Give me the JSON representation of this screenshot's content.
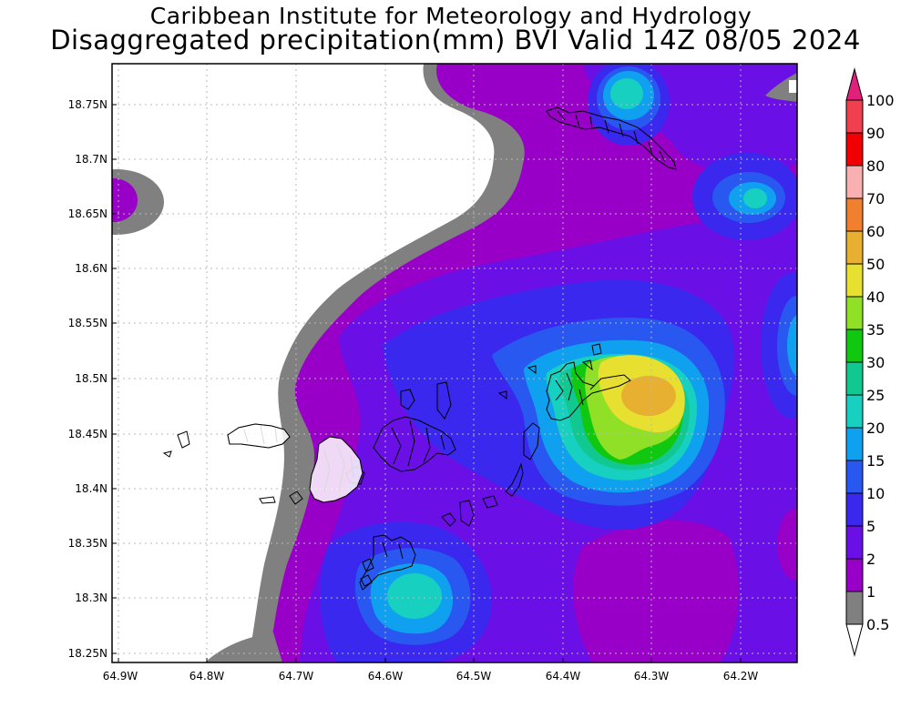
{
  "title": "Caribbean Institute for Meteorology and Hydrology",
  "subtitle": "Disaggregated precipitation(mm) BVI Valid 14Z 08/05 2024",
  "axes": {
    "lon_labels": [
      "64.9W",
      "64.8W",
      "64.7W",
      "64.6W",
      "64.5W",
      "64.4W",
      "64.3W",
      "64.2W"
    ],
    "lat_labels": [
      "18.75N",
      "18.7N",
      "18.65N",
      "18.6N",
      "18.55N",
      "18.5N",
      "18.45N",
      "18.4N",
      "18.35N",
      "18.3N",
      "18.25N"
    ]
  },
  "colorbar": {
    "labels": [
      "0.5",
      "1",
      "2",
      "5",
      "10",
      "15",
      "20",
      "25",
      "30",
      "35",
      "40",
      "50",
      "60",
      "70",
      "80",
      "90",
      "100"
    ],
    "colors": [
      "#ffffff",
      "#808080",
      "#9800c8",
      "#6a10e6",
      "#3a28ee",
      "#2858f0",
      "#10a0f0",
      "#18d0c0",
      "#10c890",
      "#10c810",
      "#90e028",
      "#e8e030",
      "#e8b030",
      "#f08030",
      "#f8b0b0",
      "#f00000",
      "#f04050",
      "#e0207a"
    ]
  },
  "precip_colors": {
    "below_0_5": "#ffffff",
    "0_5_to_1": "#808080",
    "1_to_2": "#9800c8",
    "2_to_5": "#6a10e6",
    "5_to_10": "#3a28ee",
    "10_to_15": "#2858f0",
    "15_to_20": "#10a0f0",
    "20_to_25": "#18d0c0",
    "25_to_30": "#10c890",
    "30_to_35": "#10c810",
    "35_to_40": "#90e028",
    "40_to_50": "#e8e030",
    "50_to_60": "#e8b030"
  }
}
